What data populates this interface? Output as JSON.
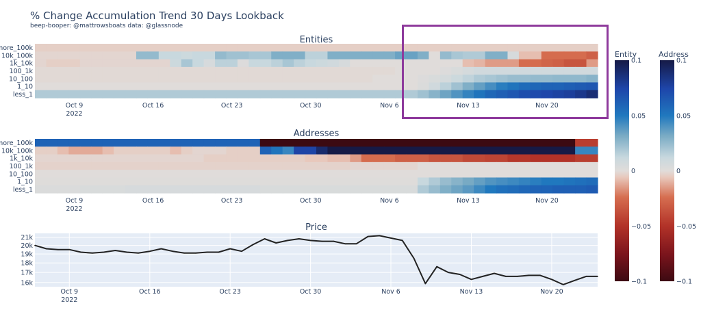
{
  "title": "% Change Accumulation Trend 30 Days Lookback",
  "subtitle": "beep-booper: @mattrowsboats data: @glassnode",
  "highlight_color": "#8e3a9c",
  "chart_data": [
    {
      "type": "heatmap",
      "title": "Entities",
      "colorbar_title": "Entity",
      "zlim": [
        -0.1,
        0.1
      ],
      "colorbar_ticks": [
        "0.1",
        "0.05",
        "0",
        "−0.05",
        "−0.1"
      ],
      "colorbar_tick_values": [
        0.1,
        0.05,
        0,
        -0.05,
        -0.1
      ],
      "rows": [
        "more_100k",
        "10k_100k",
        "1k_10k",
        "100_1k",
        "10_100",
        "1_10",
        "less_1"
      ],
      "x_start": "2022-10-06",
      "x_end": "2022-11-24",
      "x_ticks": [
        "Oct 9",
        "Oct 16",
        "Oct 23",
        "Oct 30",
        "Nov 6",
        "Nov 13",
        "Nov 20"
      ],
      "x_tick_year": "2022",
      "z": {
        "more_100k": [
          -0.004,
          -0.004,
          -0.004,
          -0.004,
          -0.004,
          -0.004,
          -0.004,
          -0.004,
          -0.004,
          -0.004,
          -0.004,
          -0.004,
          -0.004,
          -0.004,
          -0.004,
          -0.004,
          -0.004,
          -0.004,
          -0.004,
          -0.004,
          -0.004,
          -0.004,
          -0.004,
          -0.004,
          -0.004,
          -0.004,
          -0.004,
          -0.004,
          -0.004,
          -0.004,
          -0.004,
          -0.004,
          -0.004,
          -0.004,
          -0.004,
          -0.004,
          -0.004,
          -0.004,
          -0.004,
          -0.004,
          -0.004,
          -0.004,
          -0.004,
          -0.004,
          -0.004,
          -0.004,
          -0.004,
          -0.004,
          -0.004,
          -0.004
        ],
        "10k_100k": [
          -0.002,
          -0.002,
          -0.002,
          -0.002,
          -0.002,
          -0.002,
          -0.002,
          -0.002,
          -0.002,
          0.025,
          0.025,
          0.012,
          0.012,
          0.01,
          0.012,
          0.012,
          0.025,
          0.022,
          0.022,
          0.02,
          0.02,
          0.03,
          0.03,
          0.03,
          0.015,
          0.015,
          0.03,
          0.03,
          0.03,
          0.03,
          0.03,
          0.03,
          0.035,
          0.035,
          0.03,
          0.0,
          0.025,
          0.02,
          0.018,
          0.018,
          0.03,
          0.03,
          0.005,
          -0.008,
          -0.008,
          -0.025,
          -0.025,
          -0.025,
          -0.025,
          -0.03
        ],
        "1k_10k": [
          -0.002,
          -0.004,
          -0.004,
          -0.004,
          -0.002,
          -0.002,
          -0.002,
          -0.002,
          -0.002,
          -0.002,
          -0.002,
          -0.002,
          0.01,
          0.02,
          0.012,
          0.005,
          0.015,
          0.015,
          0.002,
          0.012,
          0.012,
          0.015,
          0.02,
          0.015,
          0.012,
          0.01,
          0.008,
          0.005,
          0.0,
          0.0,
          0.0,
          0.0,
          0.0,
          0.0,
          0.0,
          0.0,
          0.0,
          0.0,
          -0.008,
          -0.01,
          -0.015,
          -0.015,
          -0.015,
          -0.025,
          -0.025,
          -0.028,
          -0.03,
          -0.035,
          -0.035,
          -0.015
        ],
        "100_1k": [
          -0.001,
          -0.001,
          -0.001,
          -0.001,
          -0.001,
          -0.001,
          -0.001,
          -0.001,
          -0.001,
          -0.001,
          -0.001,
          -0.001,
          -0.001,
          -0.001,
          -0.001,
          -0.001,
          -0.001,
          -0.001,
          -0.001,
          -0.001,
          -0.001,
          -0.001,
          -0.001,
          -0.001,
          -0.001,
          -0.001,
          -0.001,
          -0.001,
          -0.001,
          -0.001,
          -0.001,
          -0.001,
          0.0,
          0.0,
          0.0,
          0.0,
          0.002,
          0.004,
          0.006,
          0.008,
          0.008,
          0.008,
          0.008,
          0.008,
          0.008,
          0.008,
          0.008,
          0.008,
          0.008,
          0.008
        ],
        "10_100": [
          -0.001,
          -0.001,
          -0.001,
          -0.001,
          -0.001,
          -0.001,
          -0.001,
          -0.001,
          -0.001,
          -0.001,
          -0.001,
          -0.001,
          -0.001,
          -0.001,
          -0.001,
          -0.001,
          -0.001,
          -0.001,
          -0.001,
          -0.001,
          -0.001,
          -0.001,
          -0.001,
          -0.001,
          -0.001,
          -0.001,
          -0.001,
          -0.001,
          -0.001,
          -0.001,
          0.0,
          0.0,
          0.0,
          0.0,
          0.002,
          0.004,
          0.006,
          0.01,
          0.014,
          0.018,
          0.02,
          0.022,
          0.024,
          0.024,
          0.025,
          0.025,
          0.026,
          0.026,
          0.026,
          0.028
        ],
        "1_10": [
          0.0,
          0.0,
          0.0,
          0.0,
          0.0,
          0.0,
          0.0,
          0.0,
          0.0,
          0.0,
          0.0,
          0.0,
          0.0,
          0.0,
          0.0,
          0.0,
          0.0,
          0.0,
          0.0,
          0.0,
          0.0,
          0.0,
          0.0,
          0.0,
          0.0,
          0.0,
          0.0,
          0.0,
          0.0,
          0.0,
          0.0,
          0.0,
          0.0,
          0.0,
          0.003,
          0.008,
          0.015,
          0.022,
          0.03,
          0.036,
          0.042,
          0.048,
          0.052,
          0.056,
          0.058,
          0.06,
          0.06,
          0.062,
          0.064,
          0.066
        ],
        "less_1": [
          0.018,
          0.018,
          0.018,
          0.018,
          0.018,
          0.018,
          0.018,
          0.018,
          0.018,
          0.018,
          0.018,
          0.018,
          0.018,
          0.018,
          0.018,
          0.018,
          0.018,
          0.018,
          0.018,
          0.018,
          0.018,
          0.018,
          0.018,
          0.018,
          0.018,
          0.018,
          0.018,
          0.018,
          0.018,
          0.018,
          0.018,
          0.018,
          0.018,
          0.018,
          0.022,
          0.028,
          0.034,
          0.04,
          0.046,
          0.052,
          0.058,
          0.062,
          0.066,
          0.07,
          0.072,
          0.074,
          0.076,
          0.078,
          0.082,
          0.088
        ]
      }
    },
    {
      "type": "heatmap",
      "title": "Addresses",
      "colorbar_title": "Address",
      "zlim": [
        -0.1,
        0.1
      ],
      "colorbar_ticks": [
        "0.1",
        "0.05",
        "0",
        "−0.05",
        "−0.1"
      ],
      "colorbar_tick_values": [
        0.1,
        0.05,
        0,
        -0.05,
        -0.1
      ],
      "rows": [
        "more_100k",
        "10k_100k",
        "1k_10k",
        "100_1k",
        "10_100",
        "1_10",
        "less_1"
      ],
      "x_start": "2022-10-06",
      "x_end": "2022-11-24",
      "x_ticks": [
        "Oct 9",
        "Oct 16",
        "Oct 23",
        "Oct 30",
        "Nov 6",
        "Nov 13",
        "Nov 20"
      ],
      "x_tick_year": "2022",
      "z": {
        "more_100k": [
          0.06,
          0.06,
          0.06,
          0.06,
          0.06,
          0.06,
          0.06,
          0.06,
          0.06,
          0.06,
          0.06,
          0.06,
          0.06,
          0.06,
          0.06,
          0.06,
          0.06,
          0.06,
          0.06,
          0.06,
          -0.1,
          -0.1,
          -0.1,
          -0.1,
          -0.1,
          -0.1,
          -0.1,
          -0.1,
          -0.1,
          -0.1,
          -0.1,
          -0.1,
          -0.1,
          -0.1,
          -0.1,
          -0.1,
          -0.1,
          -0.1,
          -0.1,
          -0.1,
          -0.1,
          -0.1,
          -0.1,
          -0.1,
          -0.1,
          -0.1,
          -0.1,
          -0.1,
          -0.045,
          -0.045
        ],
        "10k_100k": [
          -0.004,
          -0.004,
          -0.008,
          -0.012,
          -0.012,
          -0.012,
          -0.008,
          -0.004,
          -0.004,
          -0.004,
          -0.004,
          -0.004,
          -0.008,
          -0.004,
          -0.002,
          -0.002,
          -0.002,
          -0.004,
          -0.004,
          -0.004,
          0.06,
          0.052,
          0.045,
          0.075,
          0.075,
          0.09,
          0.1,
          0.1,
          0.1,
          0.1,
          0.1,
          0.1,
          0.1,
          0.1,
          0.1,
          0.1,
          0.1,
          0.1,
          0.1,
          0.1,
          0.1,
          0.1,
          0.1,
          0.1,
          0.1,
          0.1,
          0.1,
          0.1,
          0.045,
          0.045
        ],
        "1k_10k": [
          -0.002,
          -0.002,
          -0.002,
          -0.002,
          -0.002,
          -0.002,
          -0.002,
          -0.002,
          -0.002,
          -0.002,
          -0.002,
          -0.002,
          -0.002,
          -0.002,
          -0.002,
          -0.004,
          -0.004,
          -0.004,
          -0.004,
          -0.004,
          -0.004,
          -0.004,
          -0.004,
          -0.004,
          -0.006,
          -0.006,
          -0.008,
          -0.008,
          -0.015,
          -0.025,
          -0.025,
          -0.025,
          -0.03,
          -0.03,
          -0.03,
          -0.035,
          -0.035,
          -0.035,
          -0.04,
          -0.04,
          -0.042,
          -0.042,
          -0.048,
          -0.048,
          -0.05,
          -0.05,
          -0.05,
          -0.05,
          -0.045,
          -0.045
        ],
        "100_1k": [
          -0.003,
          -0.003,
          -0.003,
          -0.003,
          -0.003,
          -0.003,
          -0.003,
          -0.003,
          -0.003,
          -0.003,
          -0.003,
          -0.003,
          -0.003,
          -0.003,
          -0.003,
          -0.003,
          -0.003,
          -0.003,
          -0.003,
          -0.003,
          -0.003,
          -0.003,
          -0.003,
          -0.003,
          -0.003,
          -0.003,
          -0.003,
          -0.003,
          -0.002,
          -0.002,
          -0.002,
          -0.002,
          -0.002,
          -0.002,
          0.0,
          0.0,
          0.0,
          0.0,
          0.0,
          0.0,
          0.0,
          0.0,
          0.0,
          0.0,
          0.0,
          0.0,
          0.0,
          0.0,
          0.0,
          0.0
        ],
        "10_100": [
          0.0,
          0.0,
          0.0,
          0.0,
          0.0,
          0.0,
          0.0,
          0.0,
          0.0,
          0.0,
          0.0,
          0.0,
          0.0,
          0.0,
          0.0,
          0.0,
          0.0,
          0.0,
          0.0,
          0.0,
          0.0,
          0.0,
          0.0,
          0.0,
          0.0,
          0.0,
          0.0,
          0.0,
          0.0,
          0.0,
          0.0,
          0.0,
          0.0,
          0.0,
          0.0,
          0.0,
          0.0,
          0.0,
          0.0,
          0.0,
          0.0,
          0.0,
          0.0,
          0.0,
          0.0,
          0.0,
          0.0,
          0.0,
          0.0,
          0.0
        ],
        "1_10": [
          0.001,
          0.001,
          0.001,
          0.001,
          0.001,
          0.001,
          0.001,
          0.001,
          0.001,
          0.001,
          0.001,
          0.001,
          0.001,
          0.001,
          0.001,
          0.001,
          0.001,
          0.001,
          0.001,
          0.001,
          0.001,
          0.001,
          0.001,
          0.001,
          0.001,
          0.001,
          0.001,
          0.001,
          0.001,
          0.001,
          0.001,
          0.001,
          0.001,
          0.001,
          0.012,
          0.018,
          0.024,
          0.028,
          0.032,
          0.036,
          0.04,
          0.042,
          0.044,
          0.046,
          0.048,
          0.05,
          0.05,
          0.052,
          0.054,
          0.056
        ],
        "less_1": [
          0.003,
          0.003,
          0.003,
          0.003,
          0.004,
          0.004,
          0.004,
          0.004,
          0.005,
          0.005,
          0.005,
          0.005,
          0.005,
          0.005,
          0.005,
          0.005,
          0.005,
          0.005,
          0.005,
          0.005,
          0.004,
          0.004,
          0.004,
          0.004,
          0.004,
          0.004,
          0.004,
          0.004,
          0.004,
          0.004,
          0.004,
          0.004,
          0.004,
          0.004,
          0.018,
          0.024,
          0.03,
          0.034,
          0.038,
          0.044,
          0.05,
          0.054,
          0.056,
          0.058,
          0.06,
          0.06,
          0.062,
          0.062,
          0.062,
          0.064
        ]
      }
    },
    {
      "type": "line",
      "title": "Price",
      "x_start": "2022-10-06",
      "x_end": "2022-11-24",
      "x_ticks": [
        "Oct 9",
        "Oct 16",
        "Oct 23",
        "Oct 30",
        "Nov 6",
        "Nov 13",
        "Nov 20"
      ],
      "x_tick_year": "2022",
      "y_ticks": [
        "21k",
        "20k",
        "19k",
        "18k",
        "17k",
        "16k"
      ],
      "y_tick_values": [
        21000,
        20000,
        19000,
        18000,
        17000,
        16000
      ],
      "ylim": [
        15600,
        21500
      ],
      "grid": true,
      "series": [
        {
          "name": "Price",
          "color": "#222222",
          "values": [
            20000,
            19600,
            19500,
            19500,
            19200,
            19100,
            19200,
            19400,
            19200,
            19100,
            19300,
            19600,
            19300,
            19100,
            19100,
            19200,
            19200,
            19600,
            19300,
            20100,
            20800,
            20300,
            20600,
            20800,
            20600,
            20500,
            20500,
            20200,
            20200,
            21100,
            21200,
            20900,
            20600,
            18500,
            15900,
            17600,
            17000,
            16800,
            16300,
            16600,
            16900,
            16600,
            16600,
            16700,
            16700,
            16300,
            15800,
            16200,
            16600,
            16600
          ]
        }
      ]
    }
  ]
}
